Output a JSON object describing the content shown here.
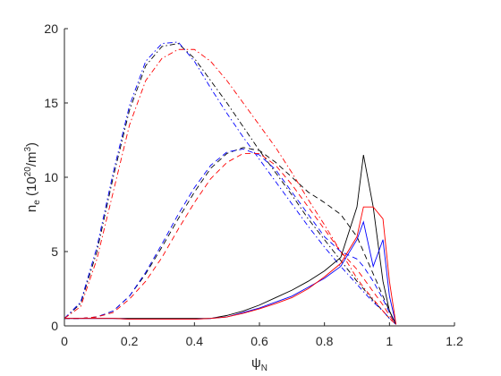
{
  "chart_data": {
    "type": "line",
    "ylabel": [
      "n",
      "e",
      " (10",
      "20",
      "/m",
      "3",
      ")"
    ],
    "xlabel": [
      "ψ",
      "N"
    ],
    "xlim": [
      0,
      1.2
    ],
    "xticks": [
      0,
      0.2,
      0.4,
      0.6,
      0.8,
      1,
      1.2
    ],
    "ylim": [
      0,
      20
    ],
    "yticks": [
      0,
      5,
      10,
      15,
      20
    ],
    "x": [
      0,
      0.05,
      0.1,
      0.15,
      0.2,
      0.25,
      0.3,
      0.35,
      0.4,
      0.45,
      0.5,
      0.55,
      0.6,
      0.65,
      0.7,
      0.75,
      0.8,
      0.85,
      0.9,
      0.92,
      0.95,
      0.98,
      1.0,
      1.02
    ],
    "series": [
      {
        "color": "#000000",
        "style": "dashdot",
        "values": [
          0.5,
          1.5,
          5,
          10,
          14.5,
          17.5,
          18.8,
          19,
          18,
          16.5,
          15,
          13.4,
          11.8,
          10.3,
          8.8,
          7.2,
          5.8,
          4.4,
          3,
          2.5,
          1.7,
          1,
          0.5,
          0.1
        ]
      },
      {
        "color": "#0000ff",
        "style": "dashdot",
        "values": [
          0.5,
          1.6,
          5.3,
          10.3,
          14.8,
          17.8,
          19,
          19.1,
          17.8,
          16,
          14.3,
          12.7,
          11.2,
          9.7,
          8.2,
          6.7,
          5.3,
          4,
          2.8,
          2.3,
          1.6,
          1,
          0.5,
          0.1
        ]
      },
      {
        "color": "#ff0000",
        "style": "dashdot",
        "values": [
          0.5,
          1.3,
          4.5,
          9,
          13.5,
          16.5,
          18,
          18.6,
          18.6,
          17.8,
          16.5,
          15,
          13.5,
          12,
          10.3,
          8.5,
          6.8,
          5,
          3.2,
          2.6,
          1.8,
          1,
          0.5,
          0.1
        ]
      },
      {
        "color": "#000000",
        "style": "dashed",
        "values": [
          0.5,
          0.5,
          0.6,
          1,
          2,
          3.5,
          5.3,
          7.2,
          9,
          10.6,
          11.6,
          12,
          11.8,
          11,
          10,
          9,
          8.3,
          7.5,
          6,
          5,
          3.5,
          2,
          1,
          0.1
        ]
      },
      {
        "color": "#0000ff",
        "style": "dashed",
        "values": [
          0.5,
          0.5,
          0.6,
          1,
          2,
          3.6,
          5.5,
          7.5,
          9.3,
          10.8,
          11.7,
          11.9,
          11.5,
          10.5,
          9,
          7.5,
          6,
          5,
          4.5,
          4,
          3,
          1.8,
          0.9,
          0.1
        ]
      },
      {
        "color": "#ff0000",
        "style": "dashed",
        "values": [
          0.5,
          0.5,
          0.6,
          0.9,
          1.8,
          3,
          4.6,
          6.5,
          8.3,
          9.9,
          11,
          11.6,
          11.6,
          10.8,
          9.5,
          8,
          6.5,
          5,
          3.8,
          3.2,
          2.3,
          1.4,
          0.7,
          0.1
        ]
      },
      {
        "color": "#000000",
        "style": "solid",
        "values": [
          0.5,
          0.5,
          0.5,
          0.5,
          0.5,
          0.5,
          0.5,
          0.5,
          0.5,
          0.5,
          0.7,
          1,
          1.4,
          1.9,
          2.4,
          3,
          3.7,
          4.6,
          8,
          11.5,
          8,
          3,
          1,
          0.1
        ]
      },
      {
        "color": "#0000ff",
        "style": "solid",
        "values": [
          0.5,
          0.5,
          0.5,
          0.5,
          0.45,
          0.45,
          0.45,
          0.45,
          0.45,
          0.5,
          0.6,
          0.9,
          1.2,
          1.6,
          2,
          2.6,
          3.2,
          4,
          5.8,
          7,
          4,
          5.8,
          2,
          0.1
        ]
      },
      {
        "color": "#ff0000",
        "style": "solid",
        "values": [
          0.5,
          0.5,
          0.5,
          0.5,
          0.45,
          0.45,
          0.45,
          0.45,
          0.45,
          0.5,
          0.6,
          0.85,
          1.15,
          1.5,
          1.9,
          2.5,
          3.3,
          4.2,
          6,
          8,
          8,
          7.2,
          3,
          0.1
        ]
      }
    ]
  }
}
